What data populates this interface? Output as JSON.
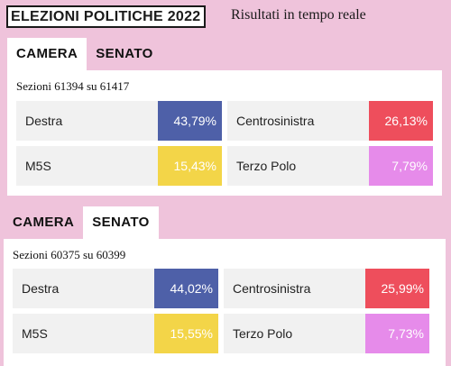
{
  "header": {
    "title": "ELEZIONI POLITICHE 2022",
    "subtitle": "Risultati in tempo reale"
  },
  "widgets": [
    {
      "tabs": [
        {
          "label": "CAMERA",
          "active": true
        },
        {
          "label": "SENATO",
          "active": false
        }
      ],
      "sezioni": "Sezioni 61394 su 61417",
      "results": [
        {
          "name": "Destra",
          "value": "43,79%",
          "color": "#4e60a8",
          "text_color": "#ffffff"
        },
        {
          "name": "Centrosinistra",
          "value": "26,13%",
          "color": "#ee4e5c",
          "text_color": "#ffffff"
        },
        {
          "name": "M5S",
          "value": "15,43%",
          "color": "#f3d548",
          "text_color": "#ffffff"
        },
        {
          "name": "Terzo Polo",
          "value": "7,79%",
          "color": "#e68bea",
          "text_color": "#ffffff"
        }
      ]
    },
    {
      "tabs": [
        {
          "label": "CAMERA",
          "active": false
        },
        {
          "label": "SENATO",
          "active": true
        }
      ],
      "sezioni": "Sezioni 60375 su 60399",
      "results": [
        {
          "name": "Destra",
          "value": "44,02%",
          "color": "#4e60a8",
          "text_color": "#ffffff"
        },
        {
          "name": "Centrosinistra",
          "value": "25,99%",
          "color": "#ee4e5c",
          "text_color": "#ffffff"
        },
        {
          "name": "M5S",
          "value": "15,55%",
          "color": "#f3d548",
          "text_color": "#ffffff"
        },
        {
          "name": "Terzo Polo",
          "value": "7,73%",
          "color": "#e68bea",
          "text_color": "#ffffff"
        }
      ]
    }
  ]
}
